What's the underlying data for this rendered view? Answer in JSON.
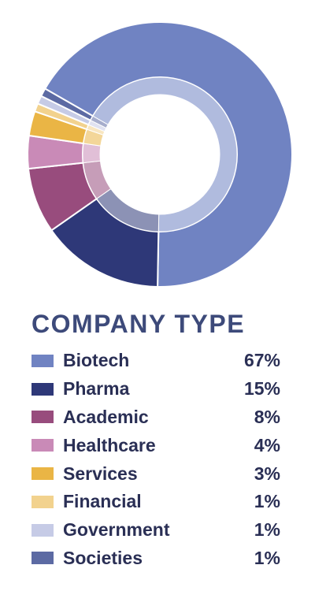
{
  "chart_data": {
    "type": "pie",
    "title": "COMPANY TYPE",
    "categories": [
      "Biotech",
      "Pharma",
      "Academic",
      "Healthcare",
      "Services",
      "Financial",
      "Government",
      "Societies"
    ],
    "values": [
      67,
      15,
      8,
      4,
      3,
      1,
      1,
      1
    ],
    "value_labels": [
      "67%",
      "15%",
      "8%",
      "4%",
      "3%",
      "1%",
      "1%",
      "1%"
    ],
    "colors": [
      "#7083c2",
      "#2e3878",
      "#984c7d",
      "#c98ab7",
      "#eab545",
      "#f2d28e",
      "#c6cbe6",
      "#5c6aa3"
    ],
    "legend": "bottom"
  },
  "legend_items": [
    {
      "label": "Biotech",
      "value": "67%",
      "color": "#7083c2"
    },
    {
      "label": "Pharma",
      "value": "15%",
      "color": "#2e3878"
    },
    {
      "label": "Academic",
      "value": "8%",
      "color": "#984c7d"
    },
    {
      "label": "Healthcare",
      "value": "4%",
      "color": "#c98ab7"
    },
    {
      "label": "Services",
      "value": "3%",
      "color": "#eab545"
    },
    {
      "label": "Financial",
      "value": "1%",
      "color": "#f2d28e"
    },
    {
      "label": "Government",
      "value": "1%",
      "color": "#c6cbe6"
    },
    {
      "label": "Societies",
      "value": "1%",
      "color": "#5c6aa3"
    }
  ]
}
